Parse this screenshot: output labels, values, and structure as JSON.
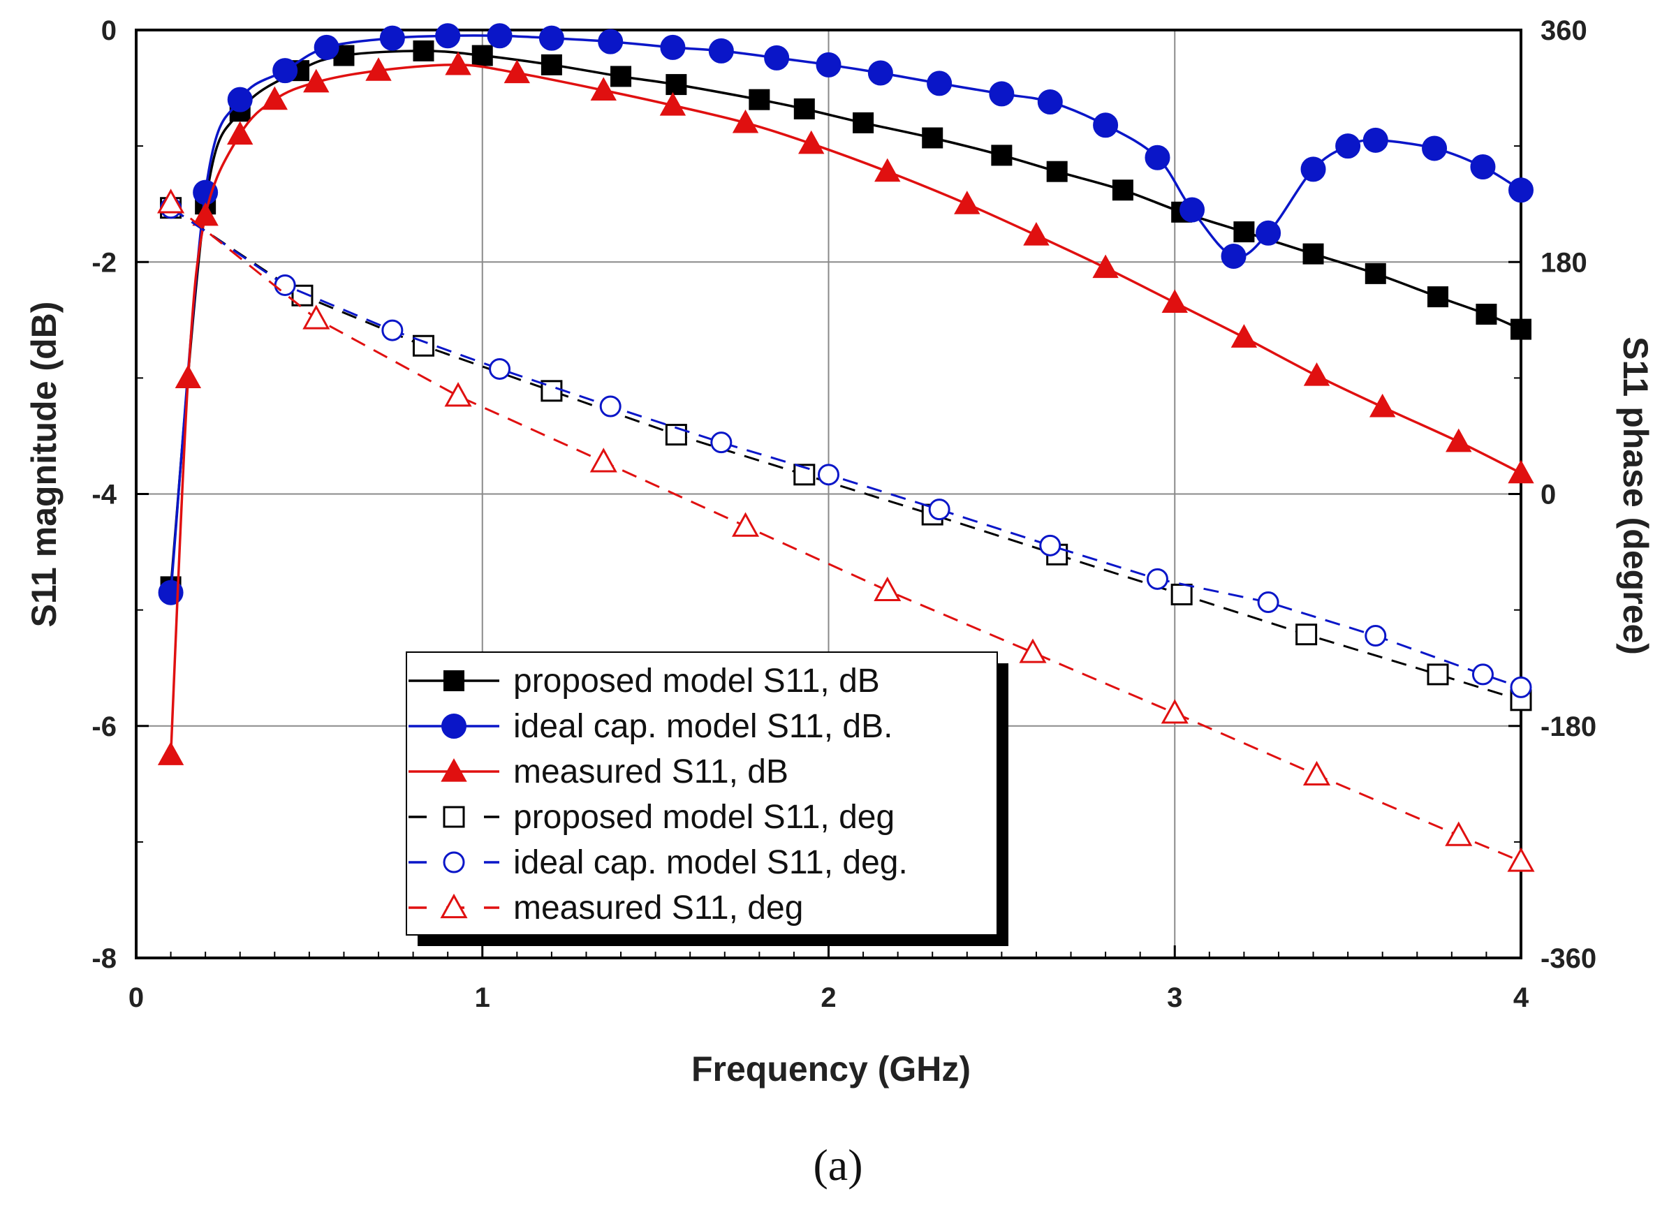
{
  "chart_data": {
    "type": "line",
    "title": "",
    "xlabel": "Frequency  (GHz)",
    "ylabel_left": "S11 magnitude  (dB)",
    "ylabel_right": "S11 phase  (degree)",
    "caption": "(a)",
    "xlim": [
      0,
      4
    ],
    "ylim_left": [
      -8,
      0
    ],
    "ylim_right": [
      -360,
      360
    ],
    "x_ticks": [
      "0",
      "1",
      "2",
      "3",
      "4"
    ],
    "y_left_ticks": [
      "0",
      "-2",
      "-4",
      "-6",
      "-8"
    ],
    "y_right_ticks": [
      "360",
      "180",
      "0",
      "-180",
      "-360"
    ],
    "grid": true,
    "legend_position": "bottom-center",
    "series": [
      {
        "name": "proposed model S11, dB",
        "axis": "left",
        "style": "solid",
        "marker": "filled-square",
        "color": "#000000",
        "x": [
          0.1,
          0.2,
          0.3,
          0.47,
          0.6,
          0.83,
          1.0,
          1.2,
          1.4,
          1.56,
          1.8,
          1.93,
          2.1,
          2.3,
          2.5,
          2.66,
          2.85,
          3.02,
          3.2,
          3.4,
          3.58,
          3.76,
          3.9,
          4.0
        ],
        "y": [
          -4.8,
          -1.5,
          -0.7,
          -0.35,
          -0.22,
          -0.18,
          -0.22,
          -0.3,
          -0.4,
          -0.47,
          -0.6,
          -0.68,
          -0.8,
          -0.93,
          -1.08,
          -1.22,
          -1.38,
          -1.57,
          -1.74,
          -1.93,
          -2.1,
          -2.3,
          -2.45,
          -2.58
        ]
      },
      {
        "name": "ideal cap. model S11, dB.",
        "axis": "left",
        "style": "solid",
        "marker": "filled-circle",
        "color": "#0a16c8",
        "x": [
          0.1,
          0.2,
          0.3,
          0.43,
          0.55,
          0.74,
          0.9,
          1.05,
          1.2,
          1.37,
          1.55,
          1.69,
          1.85,
          2.0,
          2.15,
          2.32,
          2.5,
          2.64,
          2.8,
          2.95,
          3.05,
          3.17,
          3.27,
          3.4,
          3.5,
          3.58,
          3.75,
          3.89,
          4.0
        ],
        "y": [
          -4.85,
          -1.4,
          -0.6,
          -0.35,
          -0.15,
          -0.07,
          -0.05,
          -0.05,
          -0.07,
          -0.1,
          -0.15,
          -0.18,
          -0.24,
          -0.3,
          -0.37,
          -0.46,
          -0.55,
          -0.62,
          -0.82,
          -1.1,
          -1.55,
          -1.95,
          -1.75,
          -1.2,
          -1.0,
          -0.95,
          -1.02,
          -1.18,
          -1.38
        ]
      },
      {
        "name": "measured S11, dB",
        "axis": "left",
        "style": "solid",
        "marker": "filled-triangle",
        "color": "#e01010",
        "x": [
          0.1,
          0.15,
          0.2,
          0.3,
          0.4,
          0.52,
          0.7,
          0.93,
          1.1,
          1.35,
          1.55,
          1.76,
          1.95,
          2.17,
          2.4,
          2.6,
          2.8,
          3.0,
          3.2,
          3.41,
          3.6,
          3.82,
          4.0
        ],
        "y": [
          -6.25,
          -3.0,
          -1.6,
          -0.9,
          -0.6,
          -0.45,
          -0.35,
          -0.3,
          -0.37,
          -0.52,
          -0.65,
          -0.8,
          -0.98,
          -1.22,
          -1.5,
          -1.77,
          -2.05,
          -2.35,
          -2.65,
          -2.98,
          -3.25,
          -3.55,
          -3.82
        ]
      },
      {
        "name": "proposed model S11, deg",
        "axis": "right",
        "style": "dashed",
        "marker": "open-square",
        "color": "#000000",
        "x": [
          0.1,
          0.48,
          0.83,
          1.2,
          1.56,
          1.93,
          2.3,
          2.66,
          3.02,
          3.38,
          3.76,
          4.0
        ],
        "y": [
          222,
          154,
          115,
          80,
          46,
          15,
          -16,
          -47,
          -78,
          -109,
          -140,
          -160
        ]
      },
      {
        "name": "ideal cap. model S11, deg.",
        "axis": "right",
        "style": "dashed",
        "marker": "open-circle",
        "color": "#0a16c8",
        "x": [
          0.1,
          0.43,
          0.74,
          1.05,
          1.37,
          1.69,
          2.0,
          2.32,
          2.64,
          2.95,
          3.27,
          3.58,
          3.89,
          4.0
        ],
        "y": [
          222,
          162,
          127,
          97,
          68,
          40,
          15,
          -12,
          -40,
          -66,
          -84,
          -110,
          -140,
          -150
        ]
      },
      {
        "name": "measured S11, deg",
        "axis": "right",
        "style": "dashed",
        "marker": "open-triangle",
        "color": "#e01010",
        "x": [
          0.1,
          0.52,
          0.93,
          1.35,
          1.76,
          2.17,
          2.59,
          3.0,
          3.41,
          3.82,
          4.0
        ],
        "y": [
          226,
          136,
          76,
          25,
          -25,
          -75,
          -123,
          -170,
          -218,
          -265,
          -285
        ]
      }
    ]
  }
}
